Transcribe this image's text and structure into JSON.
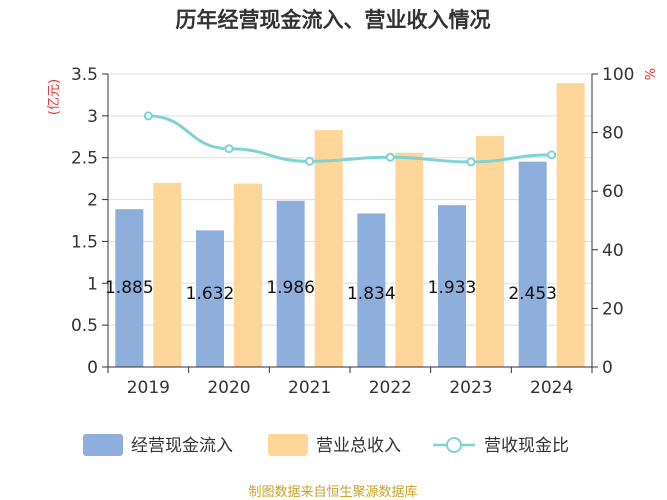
{
  "chart_data": {
    "type": "bar",
    "title": "历年经营现金流入、营业收入情况",
    "categories": [
      "2019",
      "2020",
      "2021",
      "2022",
      "2023",
      "2024"
    ],
    "series": [
      {
        "name": "经营现金流入",
        "type": "bar",
        "axis": "left",
        "color": "#8eaedc",
        "values": [
          1.885,
          1.632,
          1.986,
          1.834,
          1.933,
          2.453
        ],
        "labels": [
          "1.885",
          "1.632",
          "1.986",
          "1.834",
          "1.933",
          "2.453"
        ]
      },
      {
        "name": "营业总收入",
        "type": "bar",
        "axis": "left",
        "color": "#ffd699",
        "values": [
          2.2,
          2.19,
          2.83,
          2.56,
          2.76,
          3.39
        ]
      },
      {
        "name": "营收现金比",
        "type": "line",
        "axis": "right",
        "color": "#7fd3d3",
        "values": [
          85.7,
          74.5,
          70.2,
          71.6,
          70.0,
          72.4
        ]
      }
    ],
    "y_left": {
      "unit": "(亿元)",
      "ylim": [
        0,
        3.5
      ],
      "ticks": [
        "0",
        "0.5",
        "1",
        "1.5",
        "2",
        "2.5",
        "3",
        "3.5"
      ]
    },
    "y_right": {
      "unit": "%",
      "ylim": [
        0,
        100
      ],
      "ticks": [
        "0",
        "20",
        "40",
        "60",
        "80",
        "100"
      ]
    },
    "grid": true,
    "legend_position": "bottom",
    "source": "制图数据来自恒生聚源数据库"
  }
}
